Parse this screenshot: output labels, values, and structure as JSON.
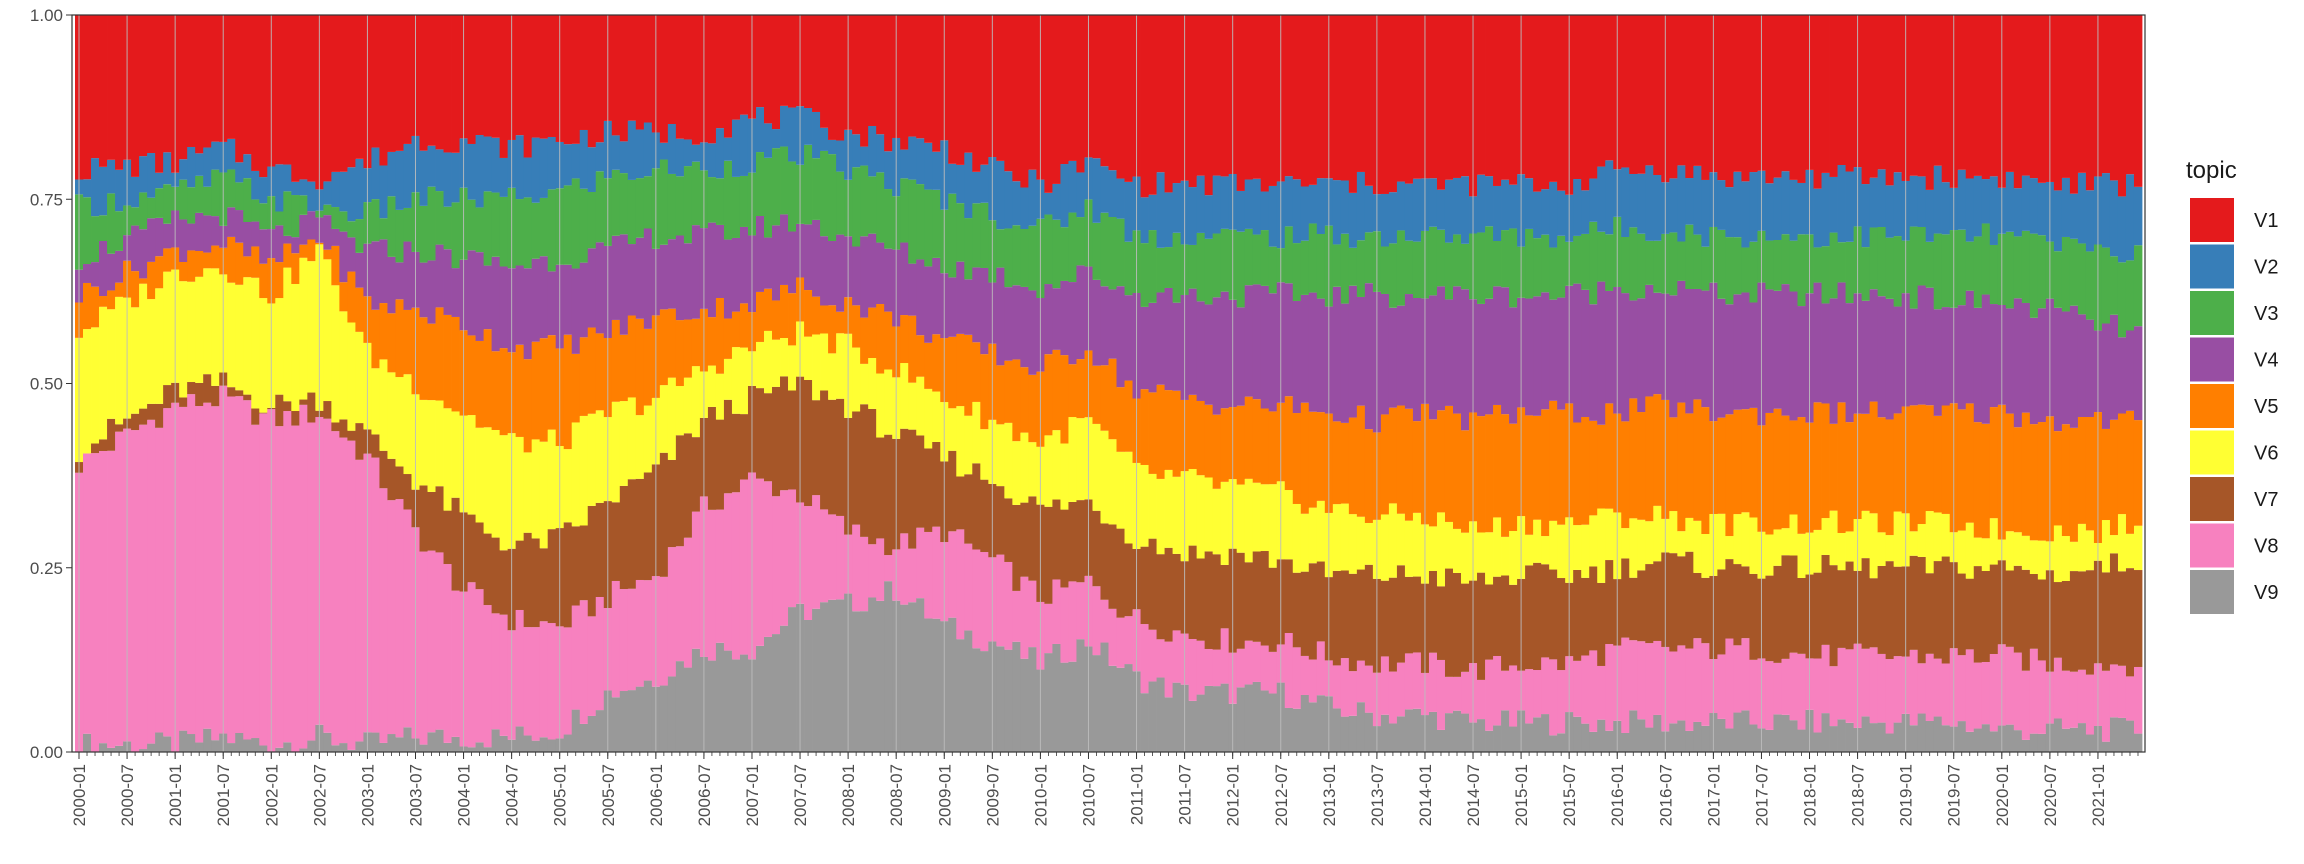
{
  "chart_data": {
    "type": "area",
    "stacked": true,
    "normalized": true,
    "x_type": "month",
    "x_start": "2000-01",
    "x_end": "2021-06",
    "xlabel": "",
    "ylabel": "",
    "ylim": [
      0,
      1
    ],
    "y_ticks": [
      "0.00",
      "0.25",
      "0.50",
      "0.75",
      "1.00"
    ],
    "x_ticks": [
      "2000-01",
      "2000-07",
      "2001-01",
      "2001-07",
      "2002-01",
      "2002-07",
      "2003-01",
      "2003-07",
      "2004-01",
      "2004-07",
      "2005-01",
      "2005-07",
      "2006-01",
      "2006-07",
      "2007-01",
      "2007-07",
      "2008-01",
      "2008-07",
      "2009-01",
      "2009-07",
      "2010-01",
      "2010-07",
      "2011-01",
      "2011-07",
      "2012-01",
      "2012-07",
      "2013-01",
      "2013-07",
      "2014-01",
      "2014-07",
      "2015-01",
      "2015-07",
      "2016-01",
      "2016-07",
      "2017-01",
      "2017-07",
      "2018-01",
      "2018-07",
      "2019-01",
      "2019-07",
      "2020-01",
      "2020-07",
      "2021-01"
    ],
    "legend": {
      "title": "topic",
      "position": "right",
      "items": [
        {
          "label": "V1",
          "color": "#E41A1C"
        },
        {
          "label": "V2",
          "color": "#377EB8"
        },
        {
          "label": "V3",
          "color": "#4DAF4A"
        },
        {
          "label": "V4",
          "color": "#984EA3"
        },
        {
          "label": "V5",
          "color": "#FF7F00"
        },
        {
          "label": "V6",
          "color": "#FFFF33"
        },
        {
          "label": "V7",
          "color": "#A65628"
        },
        {
          "label": "V8",
          "color": "#F781BF"
        },
        {
          "label": "V9",
          "color": "#999999"
        }
      ]
    },
    "grid": true,
    "stack_order_bottom_to_top": [
      "V9",
      "V8",
      "V7",
      "V6",
      "V5",
      "V4",
      "V3",
      "V2",
      "V1"
    ],
    "cumulative_anchors": {
      "x": [
        "2000-01",
        "2001-01",
        "2001-07",
        "2002-01",
        "2002-07",
        "2003-01",
        "2003-07",
        "2004-01",
        "2004-07",
        "2005-01",
        "2005-07",
        "2006-01",
        "2006-07",
        "2007-01",
        "2007-07",
        "2008-01",
        "2008-07",
        "2009-01",
        "2009-07",
        "2010-01",
        "2010-07",
        "2011-01",
        "2011-07",
        "2012-01",
        "2012-07",
        "2013-01",
        "2013-07",
        "2014-01",
        "2014-07",
        "2015-01",
        "2015-07",
        "2016-01",
        "2016-07",
        "2017-01",
        "2017-07",
        "2018-01",
        "2018-07",
        "2019-01",
        "2019-07",
        "2020-01",
        "2020-07",
        "2021-01",
        "2021-06"
      ],
      "V9": [
        0.01,
        0.01,
        0.02,
        0.01,
        0.02,
        0.01,
        0.02,
        0.02,
        0.02,
        0.03,
        0.08,
        0.1,
        0.14,
        0.14,
        0.19,
        0.2,
        0.22,
        0.17,
        0.15,
        0.12,
        0.15,
        0.1,
        0.08,
        0.08,
        0.08,
        0.06,
        0.05,
        0.05,
        0.04,
        0.04,
        0.04,
        0.04,
        0.04,
        0.04,
        0.04,
        0.04,
        0.04,
        0.04,
        0.04,
        0.03,
        0.03,
        0.03,
        0.03
      ],
      "V8": [
        0.39,
        0.47,
        0.48,
        0.45,
        0.46,
        0.4,
        0.3,
        0.22,
        0.18,
        0.17,
        0.21,
        0.24,
        0.33,
        0.37,
        0.35,
        0.3,
        0.28,
        0.3,
        0.26,
        0.21,
        0.23,
        0.18,
        0.16,
        0.15,
        0.15,
        0.13,
        0.12,
        0.12,
        0.11,
        0.12,
        0.12,
        0.14,
        0.14,
        0.14,
        0.14,
        0.13,
        0.13,
        0.13,
        0.13,
        0.13,
        0.12,
        0.12,
        0.12
      ],
      "V7": [
        0.41,
        0.49,
        0.5,
        0.47,
        0.48,
        0.43,
        0.37,
        0.32,
        0.28,
        0.29,
        0.34,
        0.38,
        0.45,
        0.48,
        0.5,
        0.47,
        0.43,
        0.4,
        0.37,
        0.33,
        0.34,
        0.29,
        0.27,
        0.27,
        0.26,
        0.24,
        0.24,
        0.24,
        0.23,
        0.24,
        0.24,
        0.25,
        0.26,
        0.25,
        0.25,
        0.25,
        0.25,
        0.25,
        0.25,
        0.25,
        0.24,
        0.25,
        0.26
      ],
      "V6": [
        0.57,
        0.65,
        0.66,
        0.62,
        0.68,
        0.54,
        0.5,
        0.46,
        0.42,
        0.42,
        0.46,
        0.48,
        0.52,
        0.55,
        0.57,
        0.55,
        0.52,
        0.48,
        0.45,
        0.42,
        0.45,
        0.38,
        0.37,
        0.36,
        0.35,
        0.33,
        0.32,
        0.32,
        0.3,
        0.31,
        0.31,
        0.32,
        0.32,
        0.31,
        0.31,
        0.31,
        0.31,
        0.31,
        0.31,
        0.3,
        0.3,
        0.3,
        0.31
      ],
      "V5": [
        0.62,
        0.68,
        0.69,
        0.66,
        0.7,
        0.61,
        0.6,
        0.58,
        0.55,
        0.55,
        0.57,
        0.59,
        0.6,
        0.61,
        0.63,
        0.61,
        0.59,
        0.56,
        0.54,
        0.52,
        0.55,
        0.49,
        0.48,
        0.47,
        0.47,
        0.46,
        0.45,
        0.46,
        0.45,
        0.46,
        0.46,
        0.46,
        0.47,
        0.46,
        0.46,
        0.46,
        0.46,
        0.46,
        0.46,
        0.46,
        0.45,
        0.45,
        0.45
      ],
      "V4": [
        0.67,
        0.72,
        0.73,
        0.7,
        0.72,
        0.68,
        0.68,
        0.67,
        0.66,
        0.67,
        0.68,
        0.7,
        0.7,
        0.71,
        0.72,
        0.7,
        0.68,
        0.66,
        0.65,
        0.63,
        0.65,
        0.62,
        0.62,
        0.62,
        0.62,
        0.62,
        0.62,
        0.62,
        0.62,
        0.62,
        0.62,
        0.63,
        0.63,
        0.62,
        0.62,
        0.62,
        0.62,
        0.62,
        0.61,
        0.61,
        0.6,
        0.58,
        0.57
      ],
      "V3": [
        0.74,
        0.76,
        0.78,
        0.75,
        0.74,
        0.73,
        0.75,
        0.75,
        0.75,
        0.76,
        0.78,
        0.79,
        0.79,
        0.8,
        0.81,
        0.79,
        0.77,
        0.75,
        0.73,
        0.71,
        0.74,
        0.7,
        0.7,
        0.7,
        0.7,
        0.7,
        0.7,
        0.7,
        0.7,
        0.7,
        0.7,
        0.71,
        0.71,
        0.7,
        0.7,
        0.7,
        0.7,
        0.7,
        0.7,
        0.7,
        0.69,
        0.68,
        0.68
      ],
      "V2": [
        0.79,
        0.8,
        0.82,
        0.79,
        0.78,
        0.8,
        0.83,
        0.83,
        0.82,
        0.83,
        0.84,
        0.84,
        0.84,
        0.86,
        0.86,
        0.84,
        0.83,
        0.82,
        0.79,
        0.77,
        0.8,
        0.77,
        0.77,
        0.77,
        0.77,
        0.77,
        0.77,
        0.77,
        0.77,
        0.77,
        0.77,
        0.79,
        0.79,
        0.78,
        0.78,
        0.78,
        0.78,
        0.78,
        0.78,
        0.78,
        0.77,
        0.77,
        0.77
      ],
      "V1": [
        1,
        1,
        1,
        1,
        1,
        1,
        1,
        1,
        1,
        1,
        1,
        1,
        1,
        1,
        1,
        1,
        1,
        1,
        1,
        1,
        1,
        1,
        1,
        1,
        1,
        1,
        1,
        1,
        1,
        1,
        1,
        1,
        1,
        1,
        1,
        1,
        1,
        1,
        1,
        1,
        1,
        1,
        1
      ]
    }
  }
}
